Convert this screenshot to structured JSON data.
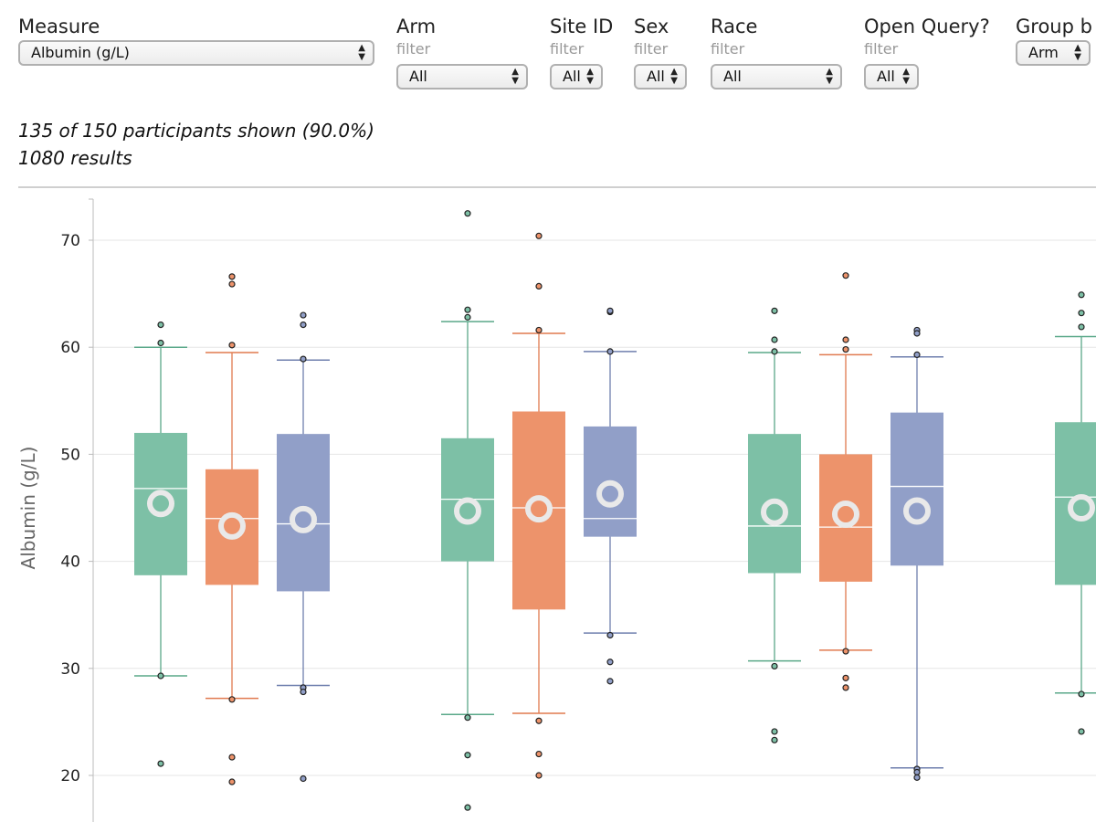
{
  "controls": {
    "measure": {
      "label": "Measure",
      "value": "Albumin (g/L)"
    },
    "filters": [
      {
        "label": "Arm",
        "sub": "filter",
        "value": "All"
      },
      {
        "label": "Site ID",
        "sub": "filter",
        "value": "All"
      },
      {
        "label": "Sex",
        "sub": "filter",
        "value": "All"
      },
      {
        "label": "Race",
        "sub": "filter",
        "value": "All"
      },
      {
        "label": "Open Query?",
        "sub": "filter",
        "value": "All"
      }
    ],
    "group_by": {
      "label": "Group b",
      "value": "Arm"
    }
  },
  "status": {
    "participants": "135 of 150 participants shown (90.0%)",
    "results": "1080 results"
  },
  "colors": {
    "series": [
      "#7dc0a6",
      "#ed936b",
      "#919fc8"
    ],
    "stroke": [
      "#5aa889",
      "#e07a4f",
      "#6f7fae"
    ]
  },
  "chart_data": {
    "type": "box",
    "ylabel": "Albumin (g/L)",
    "yticks": [
      20,
      30,
      40,
      50,
      60,
      70
    ],
    "ylim": [
      15.5,
      74.0
    ],
    "grid": true,
    "groups": [
      {
        "boxes": [
          {
            "whisker_low": 29.3,
            "q1": 38.7,
            "median": 46.8,
            "q3": 52.0,
            "whisker_high": 60.0,
            "mean": 45.4,
            "outliers": [
              62.1,
              60.4,
              29.3,
              21.1
            ]
          },
          {
            "whisker_low": 27.2,
            "q1": 37.8,
            "median": 44.0,
            "q3": 48.6,
            "whisker_high": 59.5,
            "mean": 43.3,
            "outliers": [
              66.6,
              65.9,
              60.2,
              27.1,
              21.7,
              19.4
            ]
          },
          {
            "whisker_low": 28.4,
            "q1": 37.2,
            "median": 43.5,
            "q3": 51.9,
            "whisker_high": 58.8,
            "mean": 43.9,
            "outliers": [
              63.0,
              62.1,
              58.9,
              28.2,
              27.8,
              19.7
            ]
          }
        ]
      },
      {
        "boxes": [
          {
            "whisker_low": 25.7,
            "q1": 40.0,
            "median": 45.8,
            "q3": 51.5,
            "whisker_high": 62.4,
            "mean": 44.7,
            "outliers": [
              72.5,
              63.5,
              62.8,
              25.4,
              21.9,
              17.0
            ]
          },
          {
            "whisker_low": 25.8,
            "q1": 35.5,
            "median": 45.0,
            "q3": 54.0,
            "whisker_high": 61.3,
            "mean": 44.9,
            "outliers": [
              70.4,
              65.7,
              61.6,
              25.1,
              22.0,
              20.0
            ]
          },
          {
            "whisker_low": 33.3,
            "q1": 42.3,
            "median": 44.0,
            "q3": 52.6,
            "whisker_high": 59.6,
            "mean": 46.3,
            "outliers": [
              63.3,
              63.4,
              59.6,
              33.1,
              30.6,
              28.8
            ]
          }
        ]
      },
      {
        "boxes": [
          {
            "whisker_low": 30.7,
            "q1": 38.9,
            "median": 43.3,
            "q3": 51.9,
            "whisker_high": 59.5,
            "mean": 44.6,
            "outliers": [
              63.4,
              60.7,
              59.6,
              30.2,
              24.1,
              23.3
            ]
          },
          {
            "whisker_low": 31.7,
            "q1": 38.1,
            "median": 43.2,
            "q3": 50.0,
            "whisker_high": 59.3,
            "mean": 44.4,
            "outliers": [
              66.7,
              60.7,
              59.8,
              31.6,
              29.1,
              28.2
            ]
          },
          {
            "whisker_low": 20.7,
            "q1": 39.6,
            "median": 47.0,
            "q3": 53.9,
            "whisker_high": 59.1,
            "mean": 44.7,
            "outliers": [
              61.6,
              61.3,
              59.3,
              20.6,
              20.3,
              19.8
            ]
          }
        ]
      },
      {
        "boxes": [
          {
            "whisker_low": 27.7,
            "q1": 37.8,
            "median": 46.0,
            "q3": 53.0,
            "whisker_high": 61.0,
            "mean": 45.0,
            "outliers": [
              64.9,
              63.2,
              61.9,
              27.6,
              24.1
            ]
          }
        ]
      }
    ]
  }
}
